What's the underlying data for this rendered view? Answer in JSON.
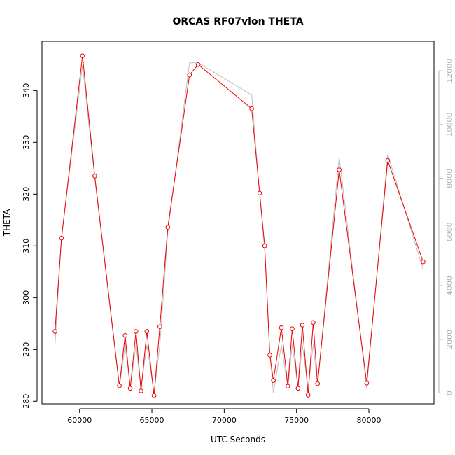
{
  "chart_data": {
    "type": "line",
    "title": "ORCAS RF07vlon THETA",
    "xlabel": "UTC Seconds",
    "ylabel": "THETA",
    "xlim": [
      57400,
      84500
    ],
    "ylim": [
      279.5,
      349.5
    ],
    "y2lim": [
      -400,
      13100
    ],
    "x_ticks": [
      60000,
      65000,
      70000,
      75000,
      80000
    ],
    "y_ticks": [
      280,
      290,
      300,
      310,
      320,
      330,
      340
    ],
    "y2_ticks": [
      0,
      2000,
      4000,
      6000,
      8000,
      10000,
      12000
    ],
    "grid": false,
    "legend": "none",
    "series": [
      {
        "axis": "left",
        "color": "#ee0000",
        "markers": true,
        "x": [
          58300,
          58750,
          60200,
          61050,
          62750,
          63150,
          63500,
          63900,
          64250,
          64650,
          65150,
          65550,
          66100,
          67600,
          68200,
          71900,
          72450,
          72800,
          73150,
          73400,
          73950,
          74400,
          74700,
          75100,
          75400,
          75800,
          76150,
          76450,
          77950,
          79850,
          81300,
          83750
        ],
        "y": [
          293.5,
          311.5,
          346.7,
          323.5,
          283.0,
          292.7,
          282.5,
          293.5,
          282.0,
          293.5,
          281.1,
          294.4,
          313.6,
          343.0,
          345.0,
          336.5,
          320.2,
          310.0,
          288.9,
          284.0,
          294.2,
          282.9,
          294.0,
          282.5,
          294.7,
          281.2,
          295.2,
          283.4,
          324.7,
          283.5,
          326.5,
          306.9
        ]
      },
      {
        "axis": "right",
        "color": "#bebebe",
        "markers": false,
        "x": [
          58300,
          58750,
          60200,
          61050,
          62750,
          63150,
          63500,
          63900,
          64250,
          64650,
          65150,
          65550,
          66100,
          67600,
          68200,
          71900,
          72450,
          72800,
          73150,
          73400,
          73950,
          74400,
          74700,
          75100,
          75400,
          75800,
          76150,
          76450,
          77950,
          79850,
          81300,
          83750
        ],
        "y": [
          1800,
          5800,
          12200,
          8000,
          200,
          1800,
          200,
          1800,
          200,
          1800,
          0,
          1800,
          6000,
          12300,
          12300,
          11100,
          7400,
          5300,
          1600,
          0,
          1800,
          200,
          1800,
          200,
          1800,
          200,
          1800,
          300,
          8800,
          200,
          8900,
          4600
        ]
      }
    ]
  }
}
